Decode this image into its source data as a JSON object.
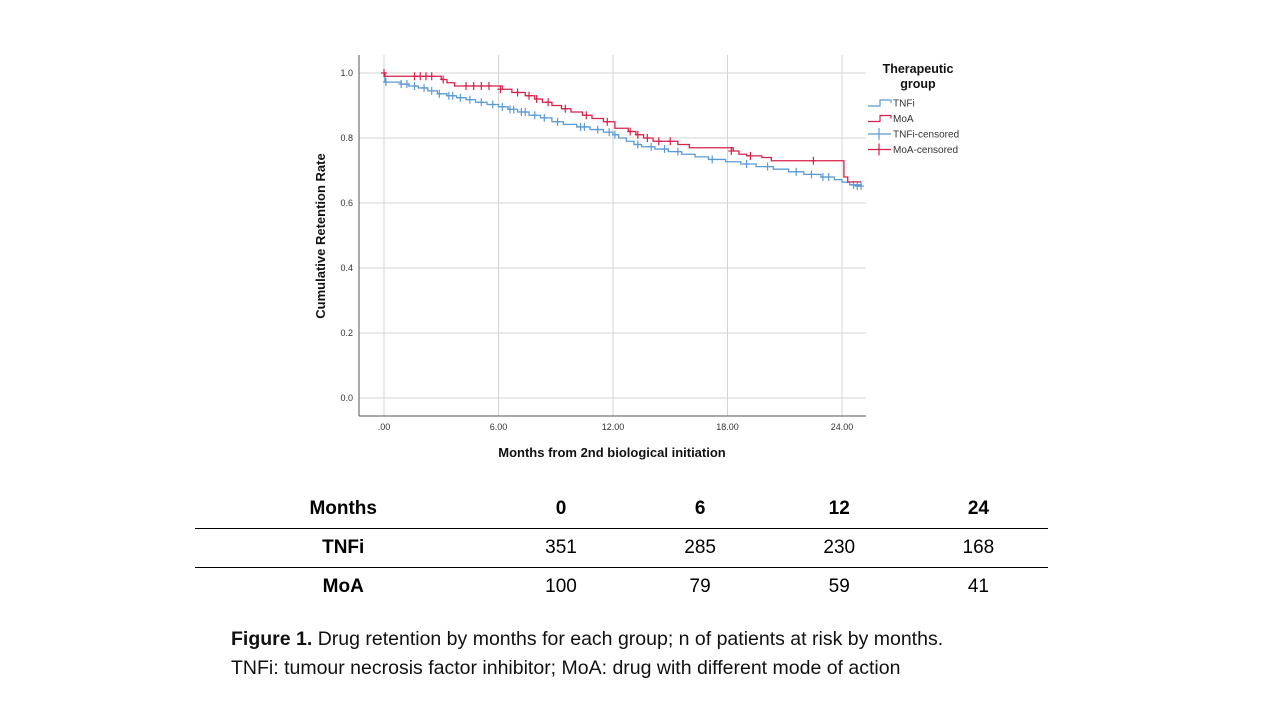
{
  "chart_data": {
    "type": "line",
    "subtype": "kaplan-meier-step",
    "title": "",
    "xlabel": "Months from 2nd biological initiation",
    "ylabel": "Cumulative Retention Rate",
    "xlim": [
      -1.2,
      25.2
    ],
    "ylim": [
      -0.06,
      1.06
    ],
    "x_ticks": [
      0,
      6,
      12,
      18,
      24
    ],
    "x_tick_labels": [
      ".00",
      "6.00",
      "12.00",
      "18.00",
      "24.00"
    ],
    "y_ticks": [
      0.0,
      0.2,
      0.4,
      0.6,
      0.8,
      1.0
    ],
    "y_tick_labels": [
      "0.0",
      "0.2",
      "0.4",
      "0.6",
      "0.8",
      "1.0"
    ],
    "grid": true,
    "legend": {
      "title_line1": "Therapeutic",
      "title_line2": "group",
      "placement": "right",
      "entries": [
        {
          "label": "TNFi",
          "kind": "step",
          "color": "#5b9bd5"
        },
        {
          "label": "MoA",
          "kind": "step",
          "color": "#d6224a"
        },
        {
          "label": "TNFi-censored",
          "kind": "censor",
          "color": "#5b9bd5"
        },
        {
          "label": "MoA-censored",
          "kind": "censor",
          "color": "#d6224a"
        }
      ]
    },
    "series": [
      {
        "name": "TNFi",
        "color": "#5b9bd5",
        "steps": [
          [
            0,
            1.0
          ],
          [
            0.05,
            0.972
          ],
          [
            0.9,
            0.966
          ],
          [
            1.3,
            0.96
          ],
          [
            1.8,
            0.954
          ],
          [
            2.3,
            0.945
          ],
          [
            2.8,
            0.936
          ],
          [
            3.3,
            0.93
          ],
          [
            3.8,
            0.924
          ],
          [
            4.3,
            0.918
          ],
          [
            4.8,
            0.91
          ],
          [
            5.4,
            0.903
          ],
          [
            6.0,
            0.896
          ],
          [
            6.5,
            0.888
          ],
          [
            7.0,
            0.88
          ],
          [
            7.6,
            0.87
          ],
          [
            8.2,
            0.862
          ],
          [
            8.8,
            0.85
          ],
          [
            9.4,
            0.842
          ],
          [
            10.1,
            0.834
          ],
          [
            10.8,
            0.826
          ],
          [
            11.5,
            0.818
          ],
          [
            12.0,
            0.81
          ],
          [
            12.3,
            0.8
          ],
          [
            12.7,
            0.79
          ],
          [
            13.1,
            0.78
          ],
          [
            13.5,
            0.773
          ],
          [
            14.2,
            0.766
          ],
          [
            14.9,
            0.758
          ],
          [
            15.6,
            0.75
          ],
          [
            16.3,
            0.742
          ],
          [
            17.0,
            0.734
          ],
          [
            17.9,
            0.727
          ],
          [
            18.7,
            0.72
          ],
          [
            19.5,
            0.712
          ],
          [
            20.4,
            0.704
          ],
          [
            21.2,
            0.696
          ],
          [
            22.0,
            0.688
          ],
          [
            22.9,
            0.68
          ],
          [
            23.6,
            0.672
          ],
          [
            24.0,
            0.664
          ],
          [
            24.4,
            0.656
          ],
          [
            25.0,
            0.652
          ]
        ],
        "censored": [
          [
            0.1,
            0.972
          ],
          [
            0.9,
            0.966
          ],
          [
            1.2,
            0.966
          ],
          [
            1.6,
            0.96
          ],
          [
            2.1,
            0.954
          ],
          [
            2.5,
            0.945
          ],
          [
            2.9,
            0.936
          ],
          [
            3.4,
            0.93
          ],
          [
            3.6,
            0.93
          ],
          [
            4.0,
            0.924
          ],
          [
            4.5,
            0.918
          ],
          [
            5.1,
            0.91
          ],
          [
            5.7,
            0.903
          ],
          [
            6.2,
            0.896
          ],
          [
            6.6,
            0.888
          ],
          [
            6.8,
            0.888
          ],
          [
            7.2,
            0.88
          ],
          [
            7.4,
            0.88
          ],
          [
            7.9,
            0.87
          ],
          [
            8.4,
            0.862
          ],
          [
            9.1,
            0.85
          ],
          [
            10.3,
            0.834
          ],
          [
            10.5,
            0.834
          ],
          [
            11.2,
            0.826
          ],
          [
            11.8,
            0.818
          ],
          [
            12.1,
            0.81
          ],
          [
            13.3,
            0.78
          ],
          [
            14.0,
            0.773
          ],
          [
            14.7,
            0.766
          ],
          [
            15.4,
            0.758
          ],
          [
            17.2,
            0.734
          ],
          [
            19.0,
            0.72
          ],
          [
            20.1,
            0.712
          ],
          [
            21.6,
            0.696
          ],
          [
            22.4,
            0.688
          ],
          [
            23.0,
            0.68
          ],
          [
            23.3,
            0.68
          ],
          [
            24.6,
            0.656
          ],
          [
            24.8,
            0.652
          ],
          [
            25.0,
            0.652
          ]
        ]
      },
      {
        "name": "MoA",
        "color": "#d6224a",
        "steps": [
          [
            0,
            1.0
          ],
          [
            0.05,
            0.99
          ],
          [
            3.0,
            0.98
          ],
          [
            3.3,
            0.97
          ],
          [
            3.7,
            0.96
          ],
          [
            6.2,
            0.95
          ],
          [
            6.7,
            0.94
          ],
          [
            7.4,
            0.93
          ],
          [
            7.9,
            0.92
          ],
          [
            8.3,
            0.91
          ],
          [
            8.8,
            0.9
          ],
          [
            9.3,
            0.89
          ],
          [
            9.8,
            0.88
          ],
          [
            10.4,
            0.87
          ],
          [
            10.9,
            0.86
          ],
          [
            11.5,
            0.85
          ],
          [
            12.1,
            0.83
          ],
          [
            12.8,
            0.82
          ],
          [
            13.2,
            0.81
          ],
          [
            13.6,
            0.8
          ],
          [
            14.1,
            0.79
          ],
          [
            15.4,
            0.78
          ],
          [
            16.0,
            0.77
          ],
          [
            18.3,
            0.76
          ],
          [
            18.6,
            0.75
          ],
          [
            19.0,
            0.745
          ],
          [
            19.8,
            0.74
          ],
          [
            20.3,
            0.73
          ],
          [
            24.1,
            0.68
          ],
          [
            24.3,
            0.665
          ],
          [
            25.0,
            0.665
          ]
        ],
        "censored": [
          [
            0.0,
            1.0
          ],
          [
            1.6,
            0.99
          ],
          [
            1.9,
            0.99
          ],
          [
            2.2,
            0.99
          ],
          [
            2.5,
            0.99
          ],
          [
            3.1,
            0.98
          ],
          [
            4.3,
            0.96
          ],
          [
            4.7,
            0.96
          ],
          [
            5.1,
            0.96
          ],
          [
            5.5,
            0.96
          ],
          [
            6.1,
            0.95
          ],
          [
            7.0,
            0.94
          ],
          [
            7.6,
            0.93
          ],
          [
            8.0,
            0.92
          ],
          [
            8.6,
            0.91
          ],
          [
            9.5,
            0.89
          ],
          [
            10.6,
            0.87
          ],
          [
            11.7,
            0.85
          ],
          [
            12.9,
            0.82
          ],
          [
            13.3,
            0.81
          ],
          [
            13.8,
            0.8
          ],
          [
            14.4,
            0.79
          ],
          [
            15.0,
            0.79
          ],
          [
            18.2,
            0.76
          ],
          [
            19.2,
            0.745
          ],
          [
            22.5,
            0.73
          ]
        ]
      }
    ]
  },
  "risk_table": {
    "header_label": "Months",
    "columns": [
      "0",
      "6",
      "12",
      "24"
    ],
    "rows": [
      {
        "label": "TNFi",
        "values": [
          "351",
          "285",
          "230",
          "168"
        ]
      },
      {
        "label": "MoA",
        "values": [
          "100",
          "79",
          "59",
          "41"
        ]
      }
    ]
  },
  "caption": {
    "bold": "Figure 1.",
    "line1_rest": " Drug retention by months for each group; n of patients at risk by months.",
    "line2": "TNFi: tumour necrosis factor inhibitor; MoA: drug with different mode of action"
  }
}
